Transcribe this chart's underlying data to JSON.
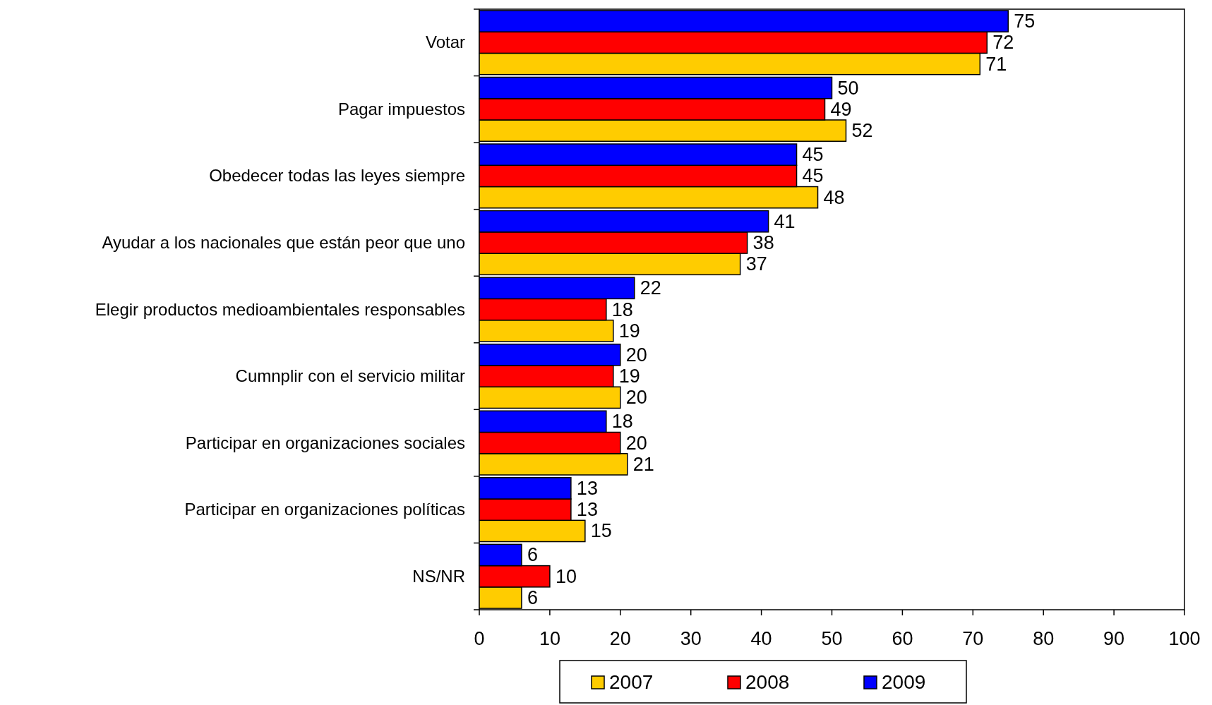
{
  "chart_data": {
    "type": "bar",
    "orientation": "horizontal",
    "categories": [
      "Votar",
      "Pagar impuestos",
      "Obedecer todas las leyes siempre",
      "Ayudar a los nacionales que están peor que uno",
      "Elegir productos medioambientales responsables",
      "Cumnplir con el servicio militar",
      "Participar en organizaciones sociales",
      "Participar en organizaciones políticas",
      "NS/NR"
    ],
    "series": [
      {
        "name": "2007",
        "color": "#ffcc00",
        "values": [
          71,
          52,
          48,
          37,
          19,
          20,
          21,
          15,
          6
        ]
      },
      {
        "name": "2008",
        "color": "#ff0000",
        "values": [
          72,
          49,
          45,
          38,
          18,
          19,
          20,
          13,
          10
        ]
      },
      {
        "name": "2009",
        "color": "#0000ff",
        "values": [
          75,
          50,
          45,
          41,
          22,
          20,
          18,
          13,
          6
        ]
      }
    ],
    "xlim": [
      0,
      100
    ],
    "xticks": [
      0,
      10,
      20,
      30,
      40,
      50,
      60,
      70,
      80,
      90,
      100
    ],
    "data_labels": true,
    "grid": false,
    "legend": "bottom"
  }
}
